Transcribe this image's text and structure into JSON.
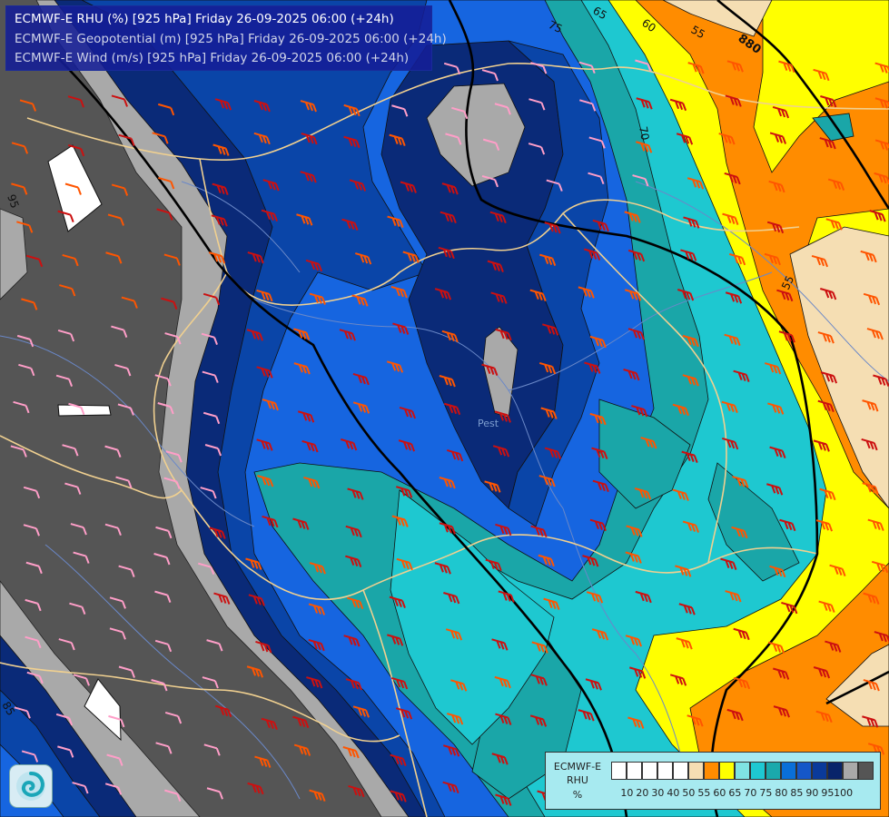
{
  "header": {
    "line1": "ECMWF-E RHU (%) [925 hPa] Friday 26-09-2025 06:00 (+24h)",
    "line2": "ECMWF-E Geopotential (m) [925 hPa] Friday 26-09-2025 06:00 (+24h)",
    "line3": "ECMWF-E Wind (m/s) [925 hPa] Friday 26-09-2025 06:00 (+24h)",
    "line1_color": "#ffffff",
    "line2_color": "#d0d4e8",
    "line3_color": "#d0d4e8"
  },
  "contour_labels": {
    "c65": "65",
    "c75": "75",
    "c60": "60",
    "c55a": "55",
    "c55b": "55",
    "c70": "70",
    "c95": "95",
    "c85": "85",
    "geopotential": "880"
  },
  "place_labels": {
    "pest": "Pest"
  },
  "legend": {
    "title_line1": "ECMWF-E",
    "title_line2": "RHU",
    "title_line3": "%",
    "ticks": [
      "10",
      "20",
      "30",
      "40",
      "50",
      "55",
      "60",
      "65",
      "70",
      "75",
      "80",
      "85",
      "90",
      "95",
      "100"
    ],
    "colors": [
      "#ffffff",
      "#ffffff",
      "#ffffff",
      "#ffffff",
      "#ffffff",
      "#f5deb3",
      "#ff8c00",
      "#ffff00",
      "#7fe3e3",
      "#1ec8d2",
      "#1aa9ac",
      "#0a6fd8",
      "#1557c8",
      "#0a3a9a",
      "#08246a",
      "#a9a9a9",
      "#555555"
    ]
  },
  "colors": {
    "rh_100": "#555555",
    "rh_95": "#a9a9a9",
    "rh_90": "#0a2a78",
    "rh_85": "#0a45a8",
    "rh_80": "#1665e0",
    "rh_75": "#1aa6a8",
    "rh_70": "#1ec8d0",
    "rh_65": "#ffff00",
    "rh_60": "#ff8c00",
    "rh_55": "#f5deb3",
    "wind_strong": "#cc1010",
    "wind_medium": "#ff5500",
    "wind_light": "#ff9ec8",
    "border": "#f0d090",
    "river": "#6a88c8"
  }
}
